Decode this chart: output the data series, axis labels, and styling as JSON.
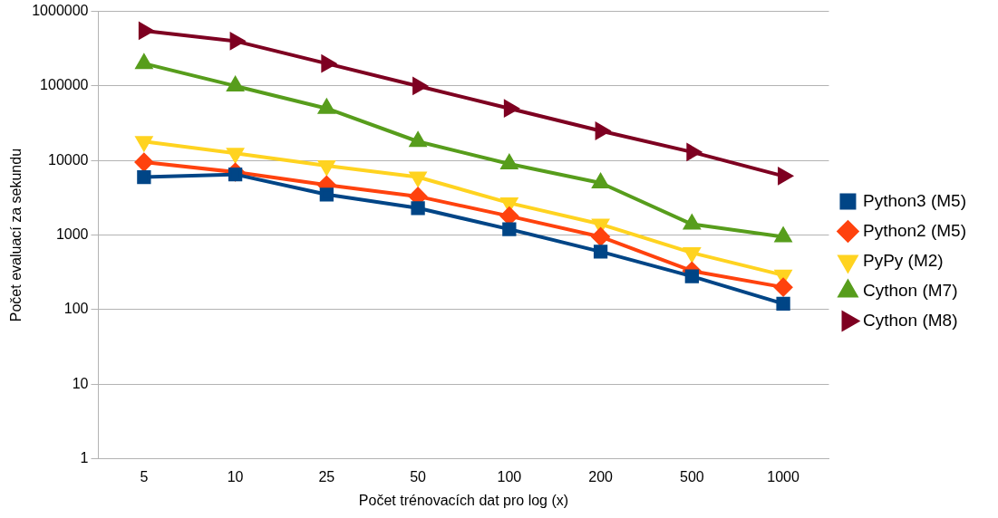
{
  "chart_data": {
    "type": "line",
    "xlabel": "Počet trénovacích dat pro log (x)",
    "ylabel": "Počet evaluací za sekundu",
    "categories": [
      "5",
      "10",
      "25",
      "50",
      "100",
      "200",
      "500",
      "1000"
    ],
    "log": "y",
    "ylim": [
      1,
      1000000
    ],
    "yticks": [
      1,
      10,
      100,
      1000,
      10000,
      100000,
      1000000
    ],
    "grid": "y",
    "legend": "right",
    "series": [
      {
        "name": "Python3 (M5)",
        "color": "#004586",
        "marker": "square",
        "values": [
          6000,
          6500,
          3500,
          2300,
          1200,
          600,
          280,
          120
        ]
      },
      {
        "name": "Python2 (M5)",
        "color": "#ff420e",
        "marker": "diamond",
        "values": [
          9500,
          7000,
          4700,
          3300,
          1800,
          950,
          330,
          200
        ]
      },
      {
        "name": "PyPy (M2)",
        "color": "#ffd320",
        "marker": "triangle-down",
        "values": [
          18000,
          12500,
          8500,
          6000,
          2700,
          1400,
          580,
          290
        ]
      },
      {
        "name": "Cython (M7)",
        "color": "#579d1c",
        "marker": "triangle",
        "values": [
          200000,
          100000,
          50000,
          18000,
          9000,
          5000,
          1400,
          950
        ]
      },
      {
        "name": "Cython (M8)",
        "color": "#7e0021",
        "marker": "triangle-right",
        "values": [
          550000,
          400000,
          200000,
          100000,
          50000,
          25000,
          13000,
          6200
        ]
      }
    ]
  }
}
